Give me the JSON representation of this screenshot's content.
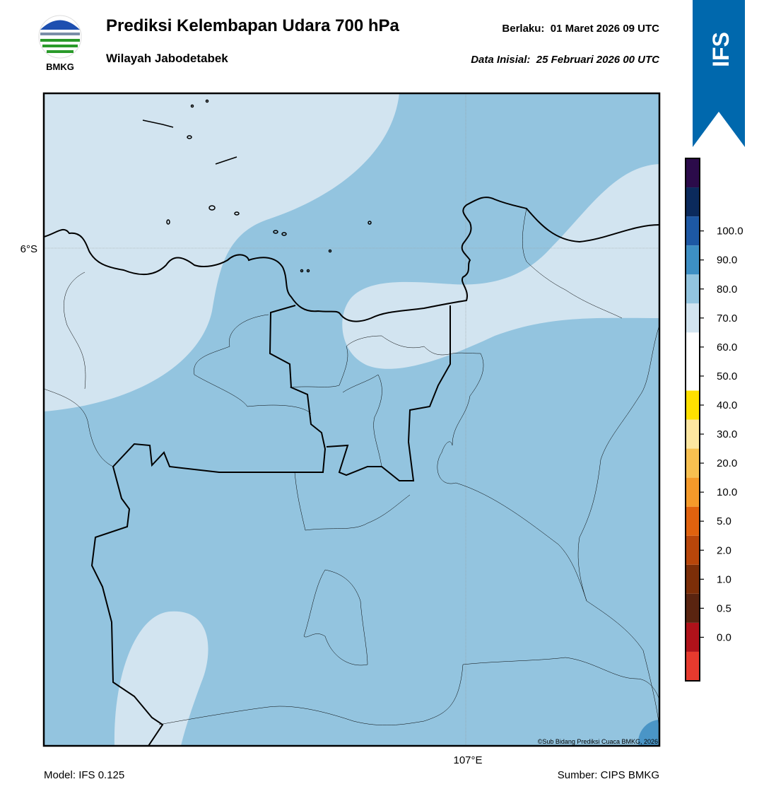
{
  "header": {
    "title": "Prediksi Kelembapan Udara 700 hPa",
    "subtitle": "Wilayah Jabodetabek",
    "valid": "Berlaku:  01 Maret 2026 09 UTC",
    "init": "Data Inisial:  25 Februari 2026 00 UTC"
  },
  "logo": {
    "text": "BMKG"
  },
  "badge": {
    "text": "IFS"
  },
  "map": {
    "lat_label": "6°S",
    "lon_label": "107°E",
    "credit": "©Sub Bidang Prediksi Cuaca BMKG, 2026"
  },
  "colorbar": {
    "labels": [
      "0.0",
      "0.5",
      "1.0",
      "2.0",
      "5.0",
      "10.0",
      "20.0",
      "30.0",
      "40.0",
      "50.0",
      "60.0",
      "70.0",
      "80.0",
      "90.0",
      "100.0"
    ],
    "colors": [
      "#e63a2e",
      "#b0121a",
      "#5a2410",
      "#7c2e08",
      "#b8460a",
      "#e0620e",
      "#f59a2a",
      "#f8c050",
      "#fde6a0",
      "#ffe000",
      "#ffffff",
      "#ffffff",
      "#d2e4f0",
      "#92c4df",
      "#3d8fc4",
      "#1d58a4",
      "#0b2a5c",
      "#2b0b4a"
    ]
  },
  "footer": {
    "model": "Model: IFS 0.125",
    "source": "Sumber: CIPS BMKG"
  }
}
